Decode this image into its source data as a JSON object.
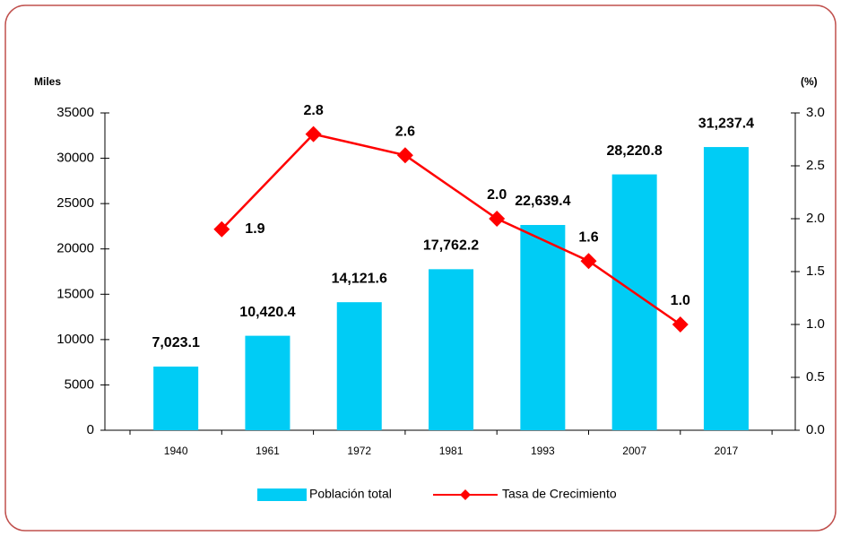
{
  "chart_data": {
    "type": "bar",
    "y_axis_label": "Miles",
    "y2_axis_label": "(%)",
    "categories": [
      "1940",
      "1961",
      "1972",
      "1981",
      "1993",
      "2007",
      "2017"
    ],
    "series": [
      {
        "name": "Población total",
        "type": "bar",
        "color": "#00ccf5",
        "values": [
          7023.1,
          10420.4,
          14121.6,
          17762.2,
          22639.4,
          28220.8,
          31237.4
        ],
        "value_labels": [
          "7,023.1",
          "10,420.4",
          "14,121.6",
          "17,762.2",
          "22,639.4",
          "28,220.8",
          "31,237.4"
        ]
      },
      {
        "name": "Tasa de Crecimiento",
        "type": "line",
        "axis": "y2",
        "color": "#ff0000",
        "values": [
          1.9,
          2.8,
          2.6,
          2.0,
          1.6,
          1.0,
          null
        ],
        "value_labels": [
          "1.9",
          "2.8",
          "2.6",
          "2.0",
          "1.6",
          "1.0",
          null
        ]
      }
    ],
    "ylim": [
      0,
      35000
    ],
    "yticks": [
      0,
      5000,
      10000,
      15000,
      20000,
      25000,
      30000,
      35000
    ],
    "y2lim": [
      0,
      3.0
    ],
    "y2ticks": [
      {
        "value": 0,
        "label": "0.0"
      },
      0.5,
      {
        "value": 1,
        "label": "1.0"
      },
      1.5,
      {
        "value": 2,
        "label": "2.0"
      },
      2.5,
      {
        "value": 3,
        "label": "3.0"
      }
    ],
    "legend": "bottom"
  }
}
